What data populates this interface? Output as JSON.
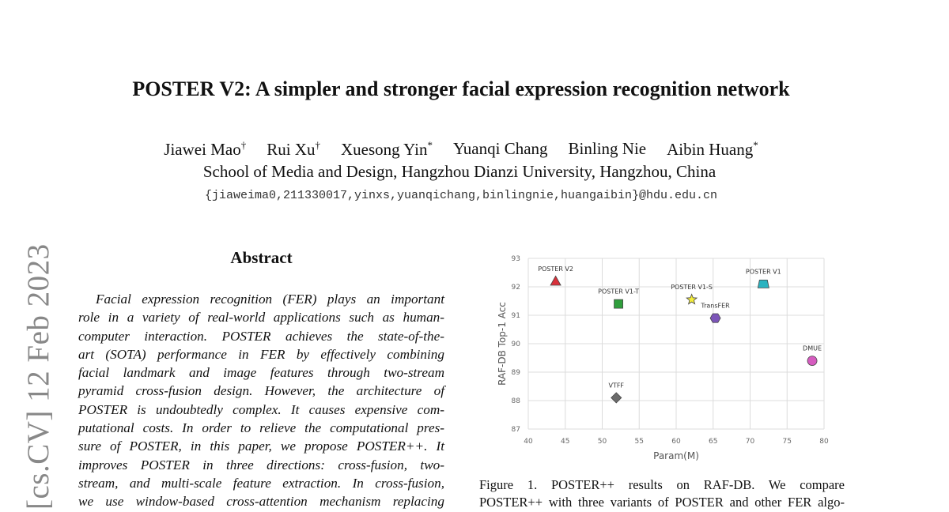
{
  "header": {
    "title": "POSTER V2: A simpler and stronger facial expression recognition network",
    "authors": [
      {
        "name": "Jiawei Mao",
        "mark": "†"
      },
      {
        "name": "Rui Xu",
        "mark": "†"
      },
      {
        "name": "Xuesong Yin",
        "mark": "*"
      },
      {
        "name": "Yuanqi Chang",
        "mark": null
      },
      {
        "name": "Binling Nie",
        "mark": null
      },
      {
        "name": "Aibin Huang",
        "mark": "*"
      }
    ],
    "affiliation": "School of Media and Design, Hangzhou Dianzi University, Hangzhou, China",
    "email": "{jiaweima0,211330017,yinxs,yuanqichang,binlingnie,huangaibin}@hdu.edu.cn"
  },
  "side_label": "[cs.CV]  12 Feb 2023",
  "abstract": {
    "heading": "Abstract",
    "lines": [
      "Facial expression recognition (FER) plays an important",
      "role in a variety of real-world applications such as human-",
      "computer interaction.  POSTER achieves the state-of-the-",
      "art (SOTA) performance in FER by effectively combining",
      "facial landmark and image features through two-stream",
      "pyramid cross-fusion design.  However, the architecture of",
      "POSTER is undoubtedly complex. It causes expensive com-",
      "putational costs. In order to relieve the computational pres-",
      "sure of POSTER, in this paper, we propose POSTER++.  It",
      "improves POSTER in three directions:  cross-fusion, two-",
      "stream, and multi-scale feature extraction.  In cross-fusion,",
      "we use window-based cross-attention mechanism replacing"
    ]
  },
  "chart_data": {
    "type": "scatter",
    "x_label": "Param(M)",
    "y_label": "RAF-DB Top-1 Acc",
    "xlim": [
      40,
      80
    ],
    "ylim": [
      87,
      93
    ],
    "xticks": [
      40,
      45,
      50,
      55,
      60,
      65,
      70,
      75,
      80
    ],
    "yticks": [
      87,
      88,
      89,
      90,
      91,
      92,
      93
    ],
    "grid": true,
    "points": [
      {
        "name": "POSTER V2",
        "x": 43.7,
        "y": 92.2,
        "color": "#d9303a",
        "marker": "triangle"
      },
      {
        "name": "POSTER V1-T",
        "x": 52.2,
        "y": 91.4,
        "color": "#2f9e3c",
        "marker": "square"
      },
      {
        "name": "POSTER V1-S",
        "x": 62.1,
        "y": 91.55,
        "color": "#f5ee3a",
        "marker": "star"
      },
      {
        "name": "TransFER",
        "x": 65.3,
        "y": 90.9,
        "color": "#7c55b8",
        "marker": "hexagon"
      },
      {
        "name": "POSTER V1",
        "x": 71.8,
        "y": 92.1,
        "color": "#2bb3c0",
        "marker": "trapezoid"
      },
      {
        "name": "DMUE",
        "x": 78.4,
        "y": 89.4,
        "color": "#d65cc0",
        "marker": "circle"
      },
      {
        "name": "VTFF",
        "x": 51.9,
        "y": 88.1,
        "color": "#6b6b6b",
        "marker": "diamond"
      }
    ]
  },
  "caption": {
    "lines": [
      "Figure  1.  POSTER++  results  on  RAF-DB.  We  compare",
      "POSTER++ with three variants of POSTER and other FER algo-"
    ]
  }
}
